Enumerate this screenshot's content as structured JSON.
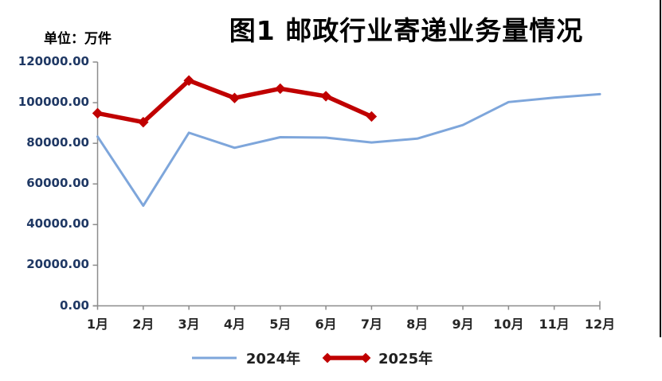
{
  "header": {
    "title": "图1 邮政行业寄递业务量情况",
    "unit_label": "单位：万件"
  },
  "chart_data": {
    "type": "line",
    "title": "图1 邮政行业寄递业务量情况",
    "unit_label": "单位：万件",
    "categories": [
      "1月",
      "2月",
      "3月",
      "4月",
      "5月",
      "6月",
      "7月",
      "8月",
      "9月",
      "10月",
      "11月",
      "12月"
    ],
    "series": [
      {
        "name": "2024年",
        "color": "#7EA6DB",
        "line_width": 3,
        "marker": "none",
        "values": [
          83300,
          49300,
          85200,
          77800,
          83000,
          82800,
          80400,
          82300,
          89000,
          100300,
          102500,
          104200
        ]
      },
      {
        "name": "2025年",
        "color": "#C00000",
        "line_width": 5.5,
        "marker": "diamond",
        "values": [
          94800,
          90400,
          110900,
          102300,
          106900,
          103200,
          93200
        ]
      }
    ],
    "ylim": [
      0,
      120000
    ],
    "ytick_step": 20000,
    "ytick_labels": [
      "0.00",
      "20000.00",
      "40000.00",
      "60000.00",
      "80000.00",
      "100000.00",
      "120000.00"
    ],
    "grid": false,
    "legend_position": "bottom",
    "axis_color": "#8C8C8C"
  },
  "colors": {
    "background": "#FFFFFF",
    "title_text": "#000000",
    "ytick_text": "#1F3864",
    "xtick_text": "#262626",
    "legend_text": "#1F1F1F",
    "axis": "#8C8C8C",
    "frame_edge": "#000000"
  }
}
